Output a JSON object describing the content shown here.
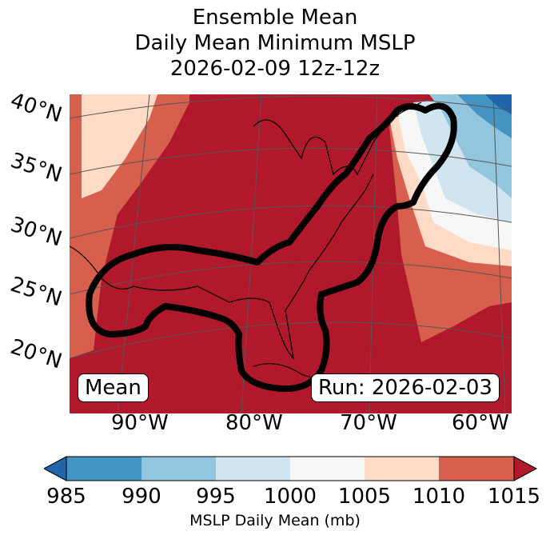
{
  "title": {
    "line1": "Ensemble Mean",
    "line2": "Daily Mean Minimum MSLP",
    "line3": "2026-02-09 12z-12z"
  },
  "lat_labels": [
    "40°N",
    "35°N",
    "30°N",
    "25°N",
    "20°N"
  ],
  "lon_labels": [
    "90°W",
    "80°W",
    "70°W",
    "60°W"
  ],
  "mean_box": "Mean",
  "run_box": "Run: 2026-02-03",
  "colorbar": {
    "label": "MSLP Daily Mean (mb)",
    "ticks": [
      "985",
      "990",
      "995",
      "1000",
      "1005",
      "1010",
      "1015"
    ],
    "colors": {
      "under": "#2166ac",
      "c985": "#4393c3",
      "c990": "#92c5de",
      "c995": "#d1e5f0",
      "c1000": "#f7f7f7",
      "c1005": "#fddbc7",
      "c1010": "#d6604d",
      "over": "#b2182b"
    }
  }
}
